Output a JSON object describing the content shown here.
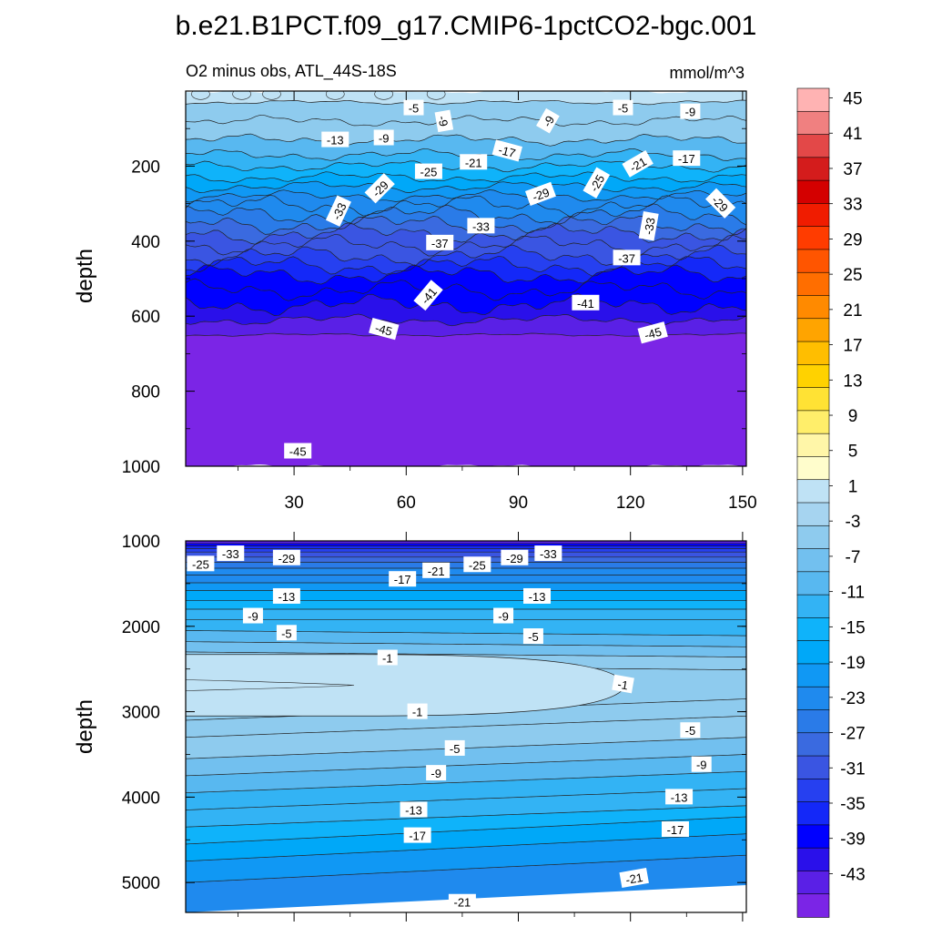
{
  "title": "b.e21.B1PCT.f09_g17.CMIP6-1pctCO2-bgc.001",
  "chart_data": {
    "type": "contour",
    "variable": "O2 minus obs",
    "units": "mmol/m^3",
    "colorbar": {
      "levels": [
        45,
        41,
        37,
        33,
        29,
        25,
        21,
        17,
        13,
        9,
        5,
        1,
        -3,
        -7,
        -11,
        -15,
        -19,
        -23,
        -27,
        -31,
        -35,
        -39,
        -43
      ],
      "colors": [
        "#ffb3b3",
        "#f08080",
        "#e34848",
        "#d41c1c",
        "#d40000",
        "#f01c00",
        "#ff3c00",
        "#ff5500",
        "#ff6e00",
        "#ff8a00",
        "#ffa400",
        "#ffbe00",
        "#ffd200",
        "#ffe234",
        "#ffee6a",
        "#fff6a8",
        "#fffdcc",
        "#bfe2f5",
        "#a6d4f0",
        "#8ecbee",
        "#72c0ef",
        "#58b8f0",
        "#33b3f4",
        "#0fb3fa",
        "#00a8f8",
        "#1098f4",
        "#1f8aee",
        "#2a7be8",
        "#3a6ae0",
        "#3a55e2",
        "#2640f0",
        "#1428f8",
        "#0000ff",
        "#2a10ea",
        "#5a20e6",
        "#7b25e6"
      ]
    },
    "panels": [
      {
        "name": "upper",
        "region_label": "O2 minus obs, ATL_44S-18S",
        "units_label": "mmol/m^3",
        "xlim": [
          1,
          151
        ],
        "ylim": [
          1000,
          0
        ],
        "ylabel": "depth",
        "xticks": [
          30,
          60,
          90,
          120,
          150
        ],
        "yticks": [
          200,
          400,
          600,
          800,
          1000
        ],
        "bands": [
          {
            "depth": 0,
            "value": 1
          },
          {
            "depth": 30,
            "value": -3
          },
          {
            "depth": 80,
            "value": -5
          },
          {
            "depth": 130,
            "value": -9
          },
          {
            "depth": 170,
            "value": -13
          },
          {
            "depth": 200,
            "value": -15
          },
          {
            "depth": 230,
            "value": -17
          },
          {
            "depth": 255,
            "value": -19
          },
          {
            "depth": 280,
            "value": -21
          },
          {
            "depth": 305,
            "value": -23
          },
          {
            "depth": 330,
            "value": -25
          },
          {
            "depth": 355,
            "value": -27
          },
          {
            "depth": 380,
            "value": -29
          },
          {
            "depth": 410,
            "value": -31
          },
          {
            "depth": 440,
            "value": -33
          },
          {
            "depth": 465,
            "value": -35
          },
          {
            "depth": 490,
            "value": -37
          },
          {
            "depth": 530,
            "value": -39
          },
          {
            "depth": 570,
            "value": -41
          },
          {
            "depth": 610,
            "value": -43
          },
          {
            "depth": 650,
            "value": -45
          },
          {
            "depth": 1000,
            "value": -45
          }
        ],
        "contour_labels": [
          {
            "text": "-5",
            "x": 62,
            "depth": 45,
            "angle": 0
          },
          {
            "text": "-5",
            "x": 118,
            "depth": 45,
            "angle": 0
          },
          {
            "text": "-9",
            "x": 136,
            "depth": 55,
            "angle": 0
          },
          {
            "text": "-9",
            "x": 70,
            "depth": 80,
            "angle": 80
          },
          {
            "text": "-9",
            "x": 98,
            "depth": 80,
            "angle": -60
          },
          {
            "text": "-9",
            "x": 54,
            "depth": 125,
            "angle": 0
          },
          {
            "text": "-13",
            "x": 41,
            "depth": 130,
            "angle": 0
          },
          {
            "text": "-17",
            "x": 87,
            "depth": 160,
            "angle": 15
          },
          {
            "text": "-17",
            "x": 135,
            "depth": 180,
            "angle": 0
          },
          {
            "text": "-21",
            "x": 78,
            "depth": 190,
            "angle": 0
          },
          {
            "text": "-21",
            "x": 122,
            "depth": 195,
            "angle": -30
          },
          {
            "text": "-25",
            "x": 66,
            "depth": 215,
            "angle": 0
          },
          {
            "text": "-25",
            "x": 111,
            "depth": 245,
            "angle": -60
          },
          {
            "text": "-29",
            "x": 53,
            "depth": 260,
            "angle": -45
          },
          {
            "text": "-29",
            "x": 96,
            "depth": 275,
            "angle": -20
          },
          {
            "text": "-29",
            "x": 144,
            "depth": 300,
            "angle": 45
          },
          {
            "text": "-33",
            "x": 42,
            "depth": 320,
            "angle": -65
          },
          {
            "text": "-33",
            "x": 80,
            "depth": 360,
            "angle": 0
          },
          {
            "text": "-33",
            "x": 125,
            "depth": 360,
            "angle": -80
          },
          {
            "text": "-37",
            "x": 69,
            "depth": 405,
            "angle": 0
          },
          {
            "text": "-37",
            "x": 119,
            "depth": 445,
            "angle": 0
          },
          {
            "text": "-41",
            "x": 66,
            "depth": 545,
            "angle": -50
          },
          {
            "text": "-41",
            "x": 108,
            "depth": 565,
            "angle": 0
          },
          {
            "text": "-45",
            "x": 54,
            "depth": 635,
            "angle": 15
          },
          {
            "text": "-45",
            "x": 126,
            "depth": 645,
            "angle": -15
          },
          {
            "text": "-45",
            "x": 31,
            "depth": 960,
            "angle": 0
          }
        ]
      },
      {
        "name": "lower",
        "xlim": [
          1,
          151
        ],
        "ylim": [
          5350,
          1000
        ],
        "ylabel": "depth",
        "yticks": [
          1000,
          2000,
          3000,
          4000,
          5000
        ],
        "bands": [
          {
            "depth": 1000,
            "value": -43
          },
          {
            "depth": 1030,
            "value": -39
          },
          {
            "depth": 1060,
            "value": -35
          },
          {
            "depth": 1090,
            "value": -33
          },
          {
            "depth": 1130,
            "value": -29
          },
          {
            "depth": 1190,
            "value": -27
          },
          {
            "depth": 1250,
            "value": -25
          },
          {
            "depth": 1320,
            "value": -23
          },
          {
            "depth": 1400,
            "value": -21
          },
          {
            "depth": 1490,
            "value": -19
          },
          {
            "depth": 1580,
            "value": -17
          },
          {
            "depth": 1700,
            "value": -15
          },
          {
            "depth": 1800,
            "value": -13
          },
          {
            "depth": 1920,
            "value": -11
          },
          {
            "depth": 2050,
            "value": -9
          },
          {
            "depth": 2180,
            "value": -7
          },
          {
            "depth": 2300,
            "value": -5
          },
          {
            "depth": 2450,
            "value": -3
          },
          {
            "depth": 3100,
            "value": -3
          },
          {
            "depth": 3300,
            "value": -5
          },
          {
            "depth": 3550,
            "value": -7
          },
          {
            "depth": 3750,
            "value": -9
          },
          {
            "depth": 3950,
            "value": -11
          },
          {
            "depth": 4150,
            "value": -13
          },
          {
            "depth": 4350,
            "value": -15
          },
          {
            "depth": 4550,
            "value": -17
          },
          {
            "depth": 4750,
            "value": -19
          },
          {
            "depth": 5000,
            "value": -21
          },
          {
            "depth": 5350,
            "value": -23
          }
        ],
        "tongue": {
          "value": 1,
          "x_end": 119,
          "depth_top": 2330,
          "depth_bottom": 3050
        },
        "contour_labels": [
          {
            "text": "-25",
            "x": 5,
            "depth": 1270,
            "angle": 0
          },
          {
            "text": "-33",
            "x": 13,
            "depth": 1150,
            "angle": 0
          },
          {
            "text": "-29",
            "x": 28,
            "depth": 1200,
            "angle": 0
          },
          {
            "text": "-17",
            "x": 59,
            "depth": 1450,
            "angle": 0
          },
          {
            "text": "-21",
            "x": 68,
            "depth": 1350,
            "angle": 0
          },
          {
            "text": "-25",
            "x": 79,
            "depth": 1280,
            "angle": 0
          },
          {
            "text": "-29",
            "x": 89,
            "depth": 1200,
            "angle": 0
          },
          {
            "text": "-33",
            "x": 98,
            "depth": 1150,
            "angle": 0
          },
          {
            "text": "-13",
            "x": 28,
            "depth": 1650,
            "angle": 0
          },
          {
            "text": "-13",
            "x": 95,
            "depth": 1650,
            "angle": 0
          },
          {
            "text": "-9",
            "x": 19,
            "depth": 1880,
            "angle": 0
          },
          {
            "text": "-9",
            "x": 86,
            "depth": 1880,
            "angle": 0
          },
          {
            "text": "-5",
            "x": 28,
            "depth": 2080,
            "angle": 0
          },
          {
            "text": "-5",
            "x": 94,
            "depth": 2120,
            "angle": 0
          },
          {
            "text": "-1",
            "x": 55,
            "depth": 2370,
            "angle": 0
          },
          {
            "text": "-1",
            "x": 118,
            "depth": 2680,
            "angle": 10
          },
          {
            "text": "-1",
            "x": 63,
            "depth": 3000,
            "angle": 0
          },
          {
            "text": "-5",
            "x": 136,
            "depth": 3220,
            "angle": 0
          },
          {
            "text": "-5",
            "x": 73,
            "depth": 3430,
            "angle": 0
          },
          {
            "text": "-9",
            "x": 139,
            "depth": 3620,
            "angle": 0
          },
          {
            "text": "-9",
            "x": 68,
            "depth": 3720,
            "angle": 0
          },
          {
            "text": "-13",
            "x": 133,
            "depth": 4000,
            "angle": 0
          },
          {
            "text": "-13",
            "x": 62,
            "depth": 4150,
            "angle": 0
          },
          {
            "text": "-17",
            "x": 132,
            "depth": 4380,
            "angle": 0
          },
          {
            "text": "-17",
            "x": 63,
            "depth": 4450,
            "angle": 0
          },
          {
            "text": "-21",
            "x": 121,
            "depth": 4950,
            "angle": -10
          },
          {
            "text": "-21",
            "x": 75,
            "depth": 5230,
            "angle": 0
          }
        ]
      }
    ]
  }
}
